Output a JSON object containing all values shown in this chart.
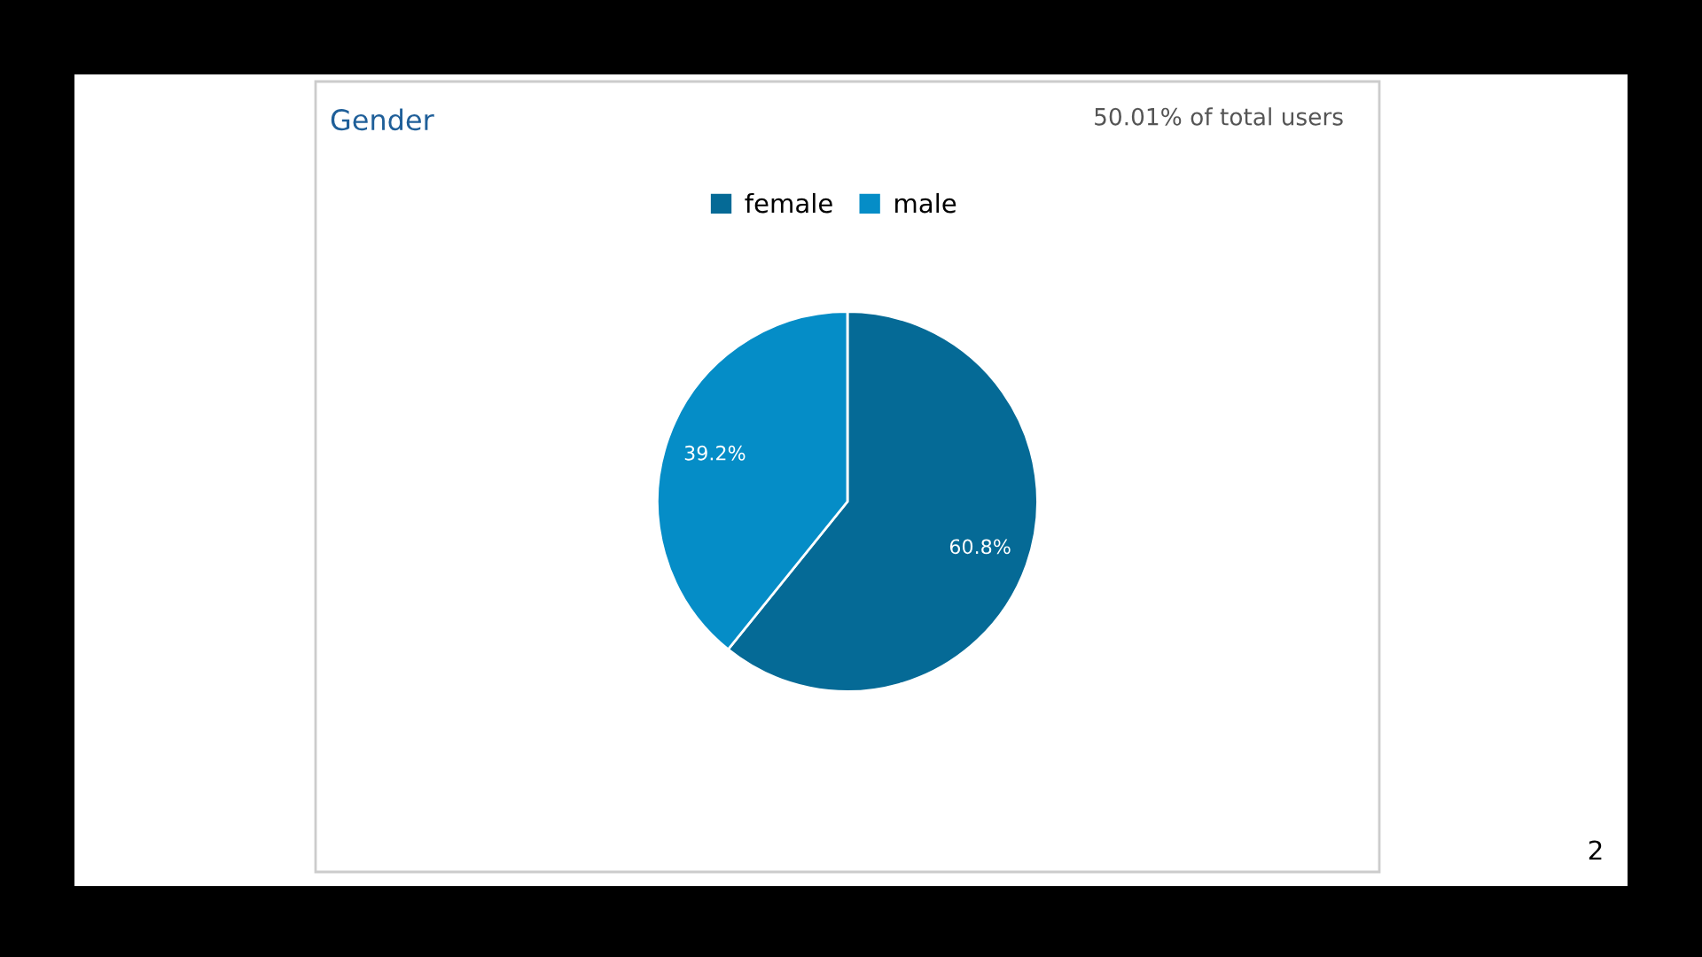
{
  "chart_data": {
    "type": "pie",
    "title": "Gender",
    "annotations": [
      "50.01% of total users",
      "2"
    ],
    "categories": [
      "female",
      "male"
    ],
    "values": [
      60.8,
      39.2
    ],
    "colors": [
      "#056a96",
      "#058dc7"
    ],
    "value_labels": [
      "60.8%",
      "39.2%"
    ],
    "legend": "top"
  }
}
